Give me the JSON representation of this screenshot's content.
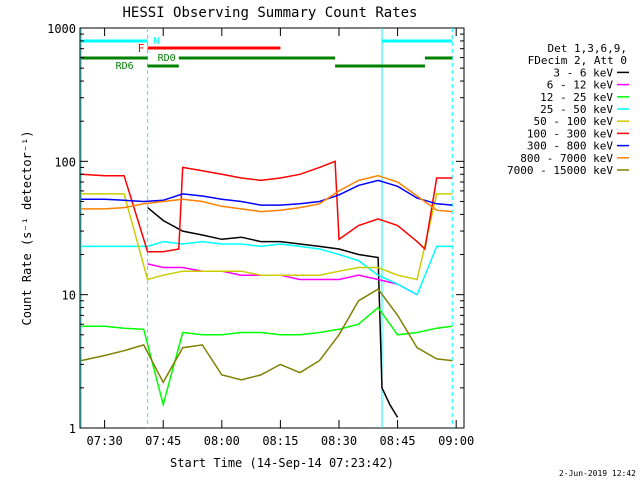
{
  "chart_data": {
    "type": "line",
    "title": "HESSI Observing Summary Count Rates",
    "xlabel": "Start Time (14-Sep-14 07:23:42)",
    "ylabel": "Count Rate (s⁻¹ detector⁻¹)",
    "y_scale": "log",
    "ylim": [
      1,
      1000
    ],
    "xlim": [
      "07:23:42",
      "09:02:00"
    ],
    "x_ticks": [
      "07:30",
      "07:45",
      "08:00",
      "08:15",
      "08:30",
      "08:45",
      "09:00"
    ],
    "y_ticks": [
      "1",
      "10",
      "100",
      "1000"
    ],
    "legend_header": [
      "Det 1,3,6,9,",
      "FDecim 2, Att 0"
    ],
    "legend_position": "right",
    "date_stamp": "2-Jun-2019 12:42",
    "bands": [
      {
        "label": "N",
        "color": "#00ffff"
      },
      {
        "label": "F",
        "color": "#ff0000"
      },
      {
        "label": "RD0",
        "color": "#008000"
      },
      {
        "label": "RD6",
        "color": "#008000"
      }
    ],
    "series": [
      {
        "name": "3 - 6 keV",
        "color": "#000000",
        "x": [
          "07:41",
          "07:45",
          "07:50",
          "07:55",
          "08:00",
          "08:05",
          "08:10",
          "08:15",
          "08:20",
          "08:25",
          "08:30",
          "08:35",
          "08:40",
          "08:41",
          "08:43",
          "08:45"
        ],
        "y": [
          45,
          36,
          30,
          28,
          26,
          27,
          25,
          25,
          24,
          23,
          22,
          20,
          19,
          2,
          1.5,
          1.2
        ]
      },
      {
        "name": "6 - 12 keV",
        "color": "#ff00ff",
        "x": [
          "07:41",
          "07:45",
          "07:50",
          "07:55",
          "08:00",
          "08:05",
          "08:10",
          "08:15",
          "08:20",
          "08:25",
          "08:30",
          "08:35",
          "08:40",
          "08:45",
          "08:50"
        ],
        "y": [
          17,
          16,
          16,
          15,
          15,
          14,
          14,
          14,
          13,
          13,
          13,
          14,
          13,
          12,
          10
        ]
      },
      {
        "name": "12 - 25 keV",
        "color": "#00ff00",
        "x": [
          "07:24",
          "07:30",
          "07:35",
          "07:40",
          "07:45",
          "07:50",
          "07:55",
          "08:00",
          "08:05",
          "08:10",
          "08:15",
          "08:20",
          "08:25",
          "08:30",
          "08:35",
          "08:40",
          "08:45",
          "08:50",
          "08:55",
          "08:59"
        ],
        "y": [
          5.8,
          5.8,
          5.6,
          5.5,
          1.5,
          5.2,
          5,
          5,
          5.2,
          5.2,
          5,
          5,
          5.2,
          5.5,
          6,
          8,
          5,
          5.2,
          5.6,
          5.8
        ]
      },
      {
        "name": "25 - 50 keV",
        "color": "#00ffff",
        "x": [
          "07:24",
          "07:30",
          "07:35",
          "07:41",
          "07:45",
          "07:50",
          "07:55",
          "08:00",
          "08:05",
          "08:10",
          "08:15",
          "08:20",
          "08:25",
          "08:30",
          "08:35",
          "08:40",
          "08:45",
          "08:50",
          "08:55",
          "08:59"
        ],
        "y": [
          23,
          23,
          23,
          23,
          25,
          24,
          25,
          24,
          24,
          23,
          24,
          23,
          22,
          20,
          18,
          14,
          12,
          10,
          23,
          23
        ]
      },
      {
        "name": "50 - 100 keV",
        "color": "#cccc00",
        "x": [
          "07:24",
          "07:30",
          "07:35",
          "07:41",
          "07:45",
          "07:50",
          "07:55",
          "08:00",
          "08:05",
          "08:10",
          "08:15",
          "08:20",
          "08:25",
          "08:30",
          "08:35",
          "08:40",
          "08:45",
          "08:50",
          "08:55",
          "08:59"
        ],
        "y": [
          57,
          57,
          57,
          13,
          14,
          15,
          15,
          15,
          15,
          14,
          14,
          14,
          14,
          15,
          16,
          16,
          14,
          13,
          57,
          57
        ]
      },
      {
        "name": "100 - 300 keV",
        "color": "#ff0000",
        "x": [
          "07:24",
          "07:30",
          "07:35",
          "07:41",
          "07:45",
          "07:49",
          "07:50",
          "07:55",
          "08:00",
          "08:05",
          "08:10",
          "08:15",
          "08:20",
          "08:25",
          "08:29",
          "08:30",
          "08:35",
          "08:40",
          "08:45",
          "08:50",
          "08:52",
          "08:55",
          "08:59"
        ],
        "y": [
          80,
          78,
          78,
          21,
          21,
          22,
          90,
          85,
          80,
          75,
          72,
          75,
          80,
          90,
          100,
          26,
          33,
          37,
          33,
          25,
          22,
          75,
          75
        ]
      },
      {
        "name": "300 - 800 keV",
        "color": "#0000ff",
        "x": [
          "07:24",
          "07:30",
          "07:35",
          "07:40",
          "07:45",
          "07:50",
          "07:55",
          "08:00",
          "08:05",
          "08:10",
          "08:15",
          "08:20",
          "08:25",
          "08:30",
          "08:35",
          "08:40",
          "08:45",
          "08:50",
          "08:55",
          "08:59"
        ],
        "y": [
          52,
          52,
          51,
          50,
          51,
          57,
          55,
          52,
          50,
          47,
          47,
          48,
          50,
          56,
          66,
          72,
          65,
          53,
          48,
          47
        ]
      },
      {
        "name": "800 - 7000 keV",
        "color": "#ff8000",
        "x": [
          "07:24",
          "07:30",
          "07:35",
          "07:40",
          "07:45",
          "07:50",
          "07:55",
          "08:00",
          "08:05",
          "08:10",
          "08:15",
          "08:20",
          "08:25",
          "08:30",
          "08:35",
          "08:40",
          "08:45",
          "08:50",
          "08:55",
          "08:59"
        ],
        "y": [
          44,
          44,
          45,
          48,
          50,
          52,
          50,
          46,
          44,
          42,
          43,
          45,
          48,
          60,
          72,
          78,
          70,
          55,
          43,
          42
        ]
      },
      {
        "name": "7000 - 15000 keV",
        "color": "#808000",
        "x": [
          "07:24",
          "07:30",
          "07:35",
          "07:40",
          "07:45",
          "07:50",
          "07:55",
          "08:00",
          "08:05",
          "08:10",
          "08:15",
          "08:20",
          "08:25",
          "08:30",
          "08:35",
          "08:40",
          "08:45",
          "08:50",
          "08:55",
          "08:59"
        ],
        "y": [
          3.2,
          3.5,
          3.8,
          4.2,
          2.2,
          4,
          4.2,
          2.5,
          2.3,
          2.5,
          3,
          2.6,
          3.2,
          5,
          9,
          11,
          7,
          4,
          3.3,
          3.2
        ]
      }
    ]
  }
}
